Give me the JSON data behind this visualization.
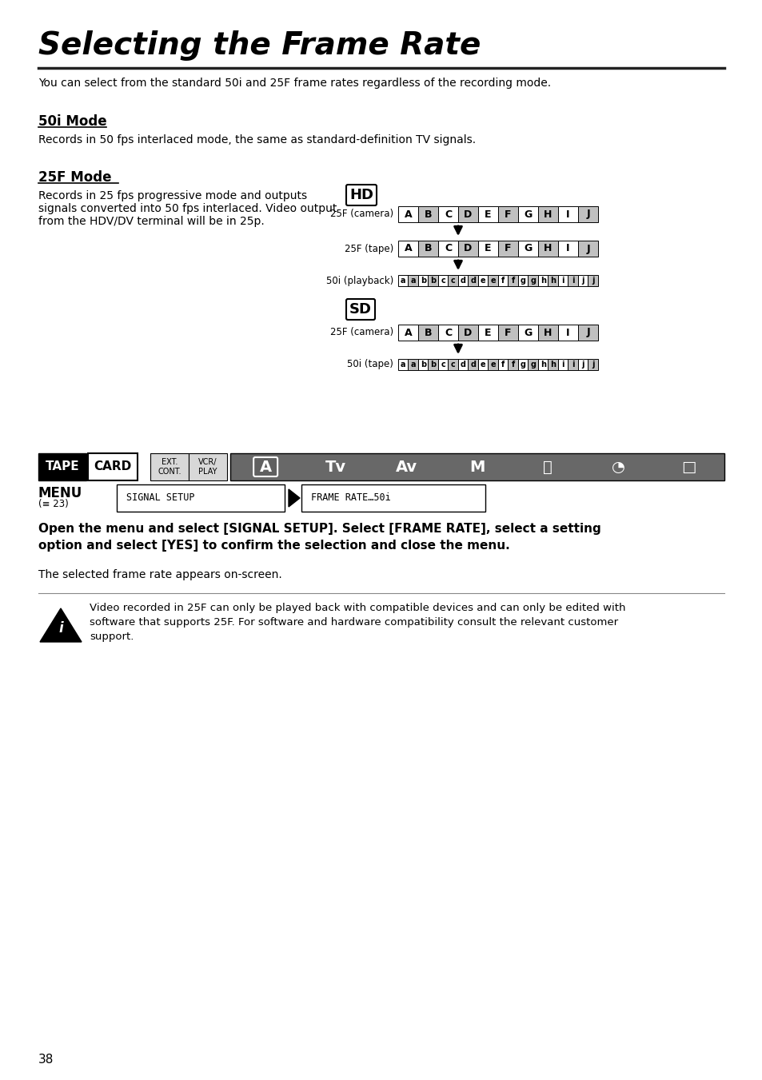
{
  "title": "Selecting the Frame Rate",
  "subtitle": "You can select from the standard 50i and 25F frame rates regardless of the recording mode.",
  "section1_title": "50i Mode",
  "section1_text": "Records in 50 fps interlaced mode, the same as standard-definition TV signals.",
  "section2_title": "25F Mode",
  "section2_text": "Records in 25 fps progressive mode and outputs\nsignals converted into 50 fps interlaced. Video output\nfrom the HDV/DV terminal will be in 25p.",
  "hd_label": "HD",
  "sd_label": "SD",
  "hd_rows": [
    {
      "label": "25F (camera)",
      "cells": [
        "A",
        "B",
        "C",
        "D",
        "E",
        "F",
        "G",
        "H",
        "I",
        "J"
      ],
      "type": "upper"
    },
    {
      "label": "25F (tape)",
      "cells": [
        "A",
        "B",
        "C",
        "D",
        "E",
        "F",
        "G",
        "H",
        "I",
        "J"
      ],
      "type": "upper"
    },
    {
      "label": "50i (playback)",
      "cells": [
        "a",
        "a",
        "b",
        "b",
        "c",
        "c",
        "d",
        "d",
        "e",
        "e",
        "f",
        "f",
        "g",
        "g",
        "h",
        "h",
        "i",
        "i",
        "j",
        "j"
      ],
      "type": "lower"
    }
  ],
  "sd_rows": [
    {
      "label": "25F (camera)",
      "cells": [
        "A",
        "B",
        "C",
        "D",
        "E",
        "F",
        "G",
        "H",
        "I",
        "J"
      ],
      "type": "upper"
    },
    {
      "label": "50i (tape)",
      "cells": [
        "a",
        "a",
        "b",
        "b",
        "c",
        "c",
        "d",
        "d",
        "e",
        "e",
        "f",
        "f",
        "g",
        "g",
        "h",
        "h",
        "i",
        "i",
        "j",
        "j"
      ],
      "type": "lower"
    }
  ],
  "tape_label": "TAPE",
  "card_label": "CARD",
  "ext_cont": "EXT.\nCONT.",
  "vcr_play": "VCR/\nPLAY",
  "icon_A": "A",
  "icon_Tv": "Tv",
  "icon_Av": "Av",
  "icon_M": "M",
  "menu_label": "MENU",
  "page_ref": "23",
  "signal_setup": "SIGNAL SETUP",
  "frame_rate_text": "FRAME RATE…50i",
  "instruction_bold": "Open the menu and select [SIGNAL SETUP]. Select [FRAME RATE], select a setting\noption and select [YES] to confirm the selection and close the menu.",
  "instruction_normal": "The selected frame rate appears on-screen.",
  "warning_text": "Video recorded in 25F can only be played back with compatible devices and can only be edited with\nsoftware that supports 25F. For software and hardware compatibility consult the relevant customer\nsupport.",
  "page_number": "38",
  "bg_color": "#ffffff",
  "text_color": "#000000",
  "gray_cell": "#c0c0c0",
  "white_cell": "#ffffff",
  "dark_gray": "#404040",
  "icon_bar_bg": "#686868"
}
